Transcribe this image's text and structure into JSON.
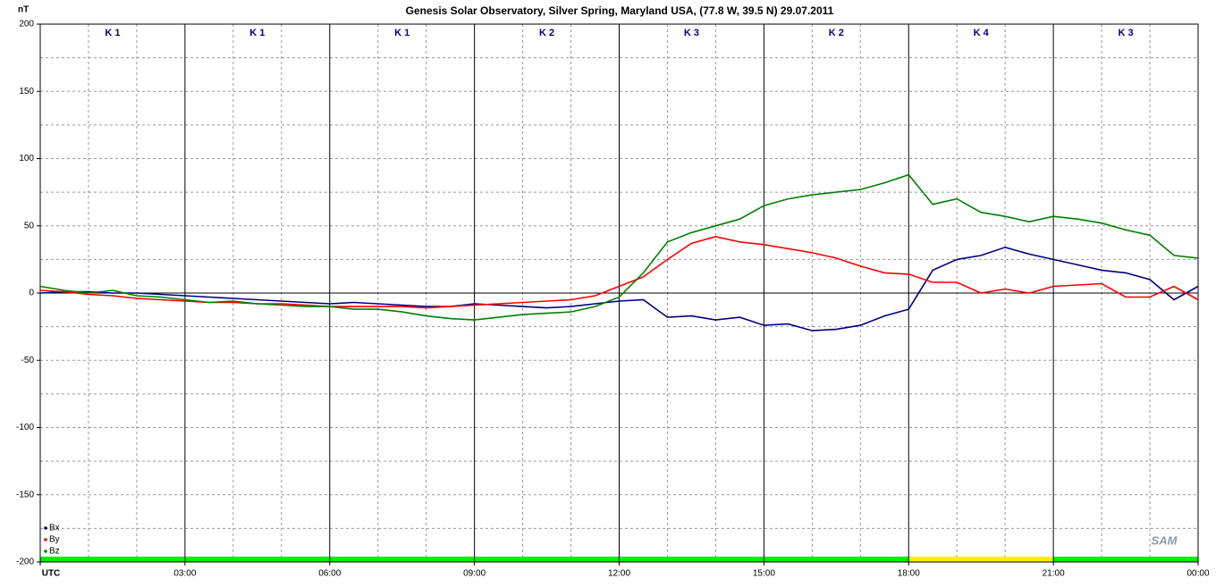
{
  "chart_data": {
    "type": "line",
    "title": "Genesis Solar Observatory, Silver Spring, Maryland USA, (77.8 W, 39.5 N)  29.07.2011",
    "y_label": "nT",
    "logo": "SAM",
    "x": [
      0,
      0.5,
      1,
      1.5,
      2,
      2.5,
      3,
      3.5,
      4,
      4.5,
      5,
      5.5,
      6,
      6.5,
      7,
      7.5,
      8,
      8.5,
      9,
      9.5,
      10,
      10.5,
      11,
      11.5,
      12,
      12.5,
      13,
      13.5,
      14,
      14.5,
      15,
      15.5,
      16,
      16.5,
      17,
      17.5,
      18,
      18.5,
      19,
      19.5,
      20,
      20.5,
      21,
      21.5,
      22,
      22.5,
      23,
      23.5,
      24
    ],
    "series": [
      {
        "name": "Bx",
        "color": "#000080",
        "values": [
          0,
          1,
          1,
          0,
          0,
          -1,
          -2,
          -3,
          -4,
          -5,
          -6,
          -7,
          -8,
          -7,
          -8,
          -9,
          -10,
          -10,
          -8,
          -9,
          -10,
          -11,
          -10,
          -8,
          -6,
          -5,
          -18,
          -17,
          -20,
          -18,
          -24,
          -23,
          -28,
          -27,
          -24,
          -17,
          -12,
          17,
          25,
          28,
          34,
          29,
          25,
          21,
          17,
          15,
          10,
          -5,
          5
        ]
      },
      {
        "name": "By",
        "color": "#ff0000",
        "values": [
          2,
          1,
          -1,
          -2,
          -4,
          -5,
          -6,
          -7,
          -7,
          -8,
          -8,
          -9,
          -10,
          -10,
          -10,
          -10,
          -11,
          -10,
          -9,
          -8,
          -7,
          -6,
          -5,
          -2,
          5,
          12,
          25,
          37,
          42,
          38,
          36,
          33,
          30,
          26,
          20,
          15,
          14,
          8,
          8,
          0,
          3,
          0,
          5,
          6,
          7,
          -3,
          -3,
          5,
          -5
        ]
      },
      {
        "name": "Bz",
        "color": "#008000",
        "values": [
          5,
          2,
          0,
          2,
          -2,
          -3,
          -5,
          -7,
          -6,
          -8,
          -9,
          -10,
          -10,
          -12,
          -12,
          -14,
          -17,
          -19,
          -20,
          -18,
          -16,
          -15,
          -14,
          -10,
          -3,
          15,
          38,
          45,
          50,
          55,
          65,
          70,
          73,
          75,
          77,
          82,
          88,
          66,
          70,
          60,
          57,
          53,
          57,
          55,
          52,
          47,
          43,
          28,
          26
        ]
      }
    ],
    "xlim": [
      0,
      24
    ],
    "xticks": [
      {
        "value": 0,
        "label": "UTC"
      },
      {
        "value": 3,
        "label": "03:00"
      },
      {
        "value": 6,
        "label": "06:00"
      },
      {
        "value": 9,
        "label": "09:00"
      },
      {
        "value": 12,
        "label": "12:00"
      },
      {
        "value": 15,
        "label": "15:00"
      },
      {
        "value": 18,
        "label": "18:00"
      },
      {
        "value": 21,
        "label": "21:00"
      },
      {
        "value": 24,
        "label": "00:00"
      }
    ],
    "xgrid": [
      1,
      2,
      4,
      5,
      7,
      8,
      10,
      11,
      13,
      14,
      16,
      17,
      19,
      20,
      22,
      23
    ],
    "ylim": [
      -200,
      200
    ],
    "yticks": [
      -200,
      -150,
      -100,
      -50,
      0,
      50,
      100,
      150,
      200
    ],
    "ygrid": [
      -175,
      -150,
      -125,
      -100,
      -75,
      -50,
      -25,
      25,
      50,
      75,
      100,
      125,
      150,
      175
    ],
    "k_index": {
      "labels": [
        "K 1",
        "K 1",
        "K 1",
        "K 2",
        "K 3",
        "K 2",
        "K 4",
        "K 3"
      ],
      "colors": [
        "#00ee00",
        "#00ee00",
        "#00ee00",
        "#00ee00",
        "#00ee00",
        "#00ee00",
        "#ffee00",
        "#00ee00"
      ]
    }
  }
}
